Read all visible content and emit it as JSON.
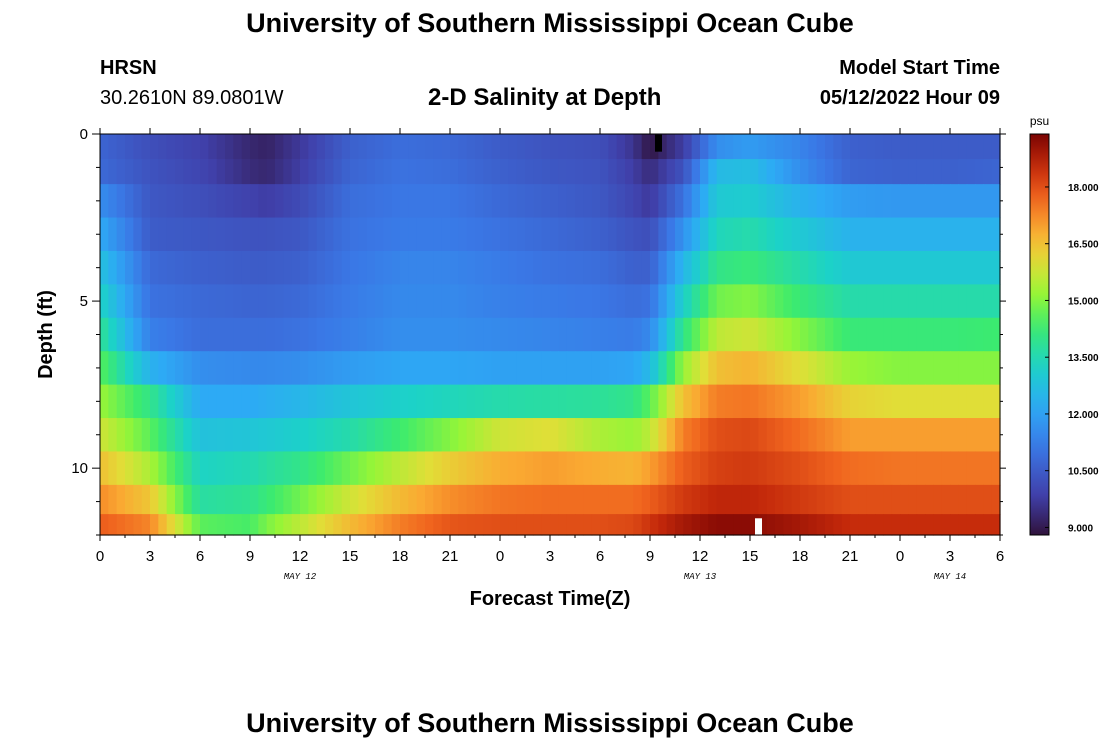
{
  "page": {
    "title": "University of Southern Mississippi Ocean Cube",
    "footer_title": "University of Southern Mississippi Ocean Cube",
    "station": "HRSN",
    "coords": "30.2610N  89.0801W",
    "plot_title": "2-D Salinity at Depth",
    "model_start_label": "Model Start Time",
    "model_start_value": "05/12/2022 Hour 09"
  },
  "chart_data": {
    "type": "heatmap",
    "title": "2-D Salinity at Depth",
    "xlabel": "Forecast Time(Z)",
    "ylabel": "Depth (ft)",
    "x_hours_range": [
      0,
      54
    ],
    "y_range": [
      0,
      12
    ],
    "y_inverted": true,
    "x_tick_labels": [
      "0",
      "3",
      "6",
      "9",
      "12",
      "15",
      "18",
      "21",
      "0",
      "3",
      "6",
      "9",
      "12",
      "15",
      "18",
      "21",
      "0",
      "3",
      "6"
    ],
    "y_tick_labels": [
      "0",
      "5",
      "10"
    ],
    "y_tick_values": [
      0,
      5,
      10
    ],
    "date_labels": [
      {
        "text": "MAY 12",
        "hour": 12
      },
      {
        "text": "MAY 13",
        "hour": 36
      },
      {
        "text": "MAY 14",
        "hour": 51
      }
    ],
    "colorbar": {
      "unit": "psu",
      "min": 8.8,
      "max": 19.4,
      "tick_labels": [
        "18.000",
        "16.500",
        "15.000",
        "13.500",
        "12.000",
        "10.500",
        "9.000"
      ],
      "tick_values": [
        18.0,
        16.5,
        15.0,
        13.5,
        12.0,
        10.5,
        9.0
      ]
    },
    "layer_depths_ft": [
      0.5,
      1.0,
      2.0,
      3.0,
      4.0,
      5.0,
      6.0,
      7.0,
      8.0,
      9.0,
      10.0,
      11.0,
      11.75
    ],
    "time_hours": [
      0,
      3,
      6,
      9,
      10,
      12,
      15,
      18,
      21,
      24,
      27,
      30,
      32,
      33,
      35,
      37,
      39,
      42,
      45,
      48,
      51,
      54
    ],
    "salinity": [
      [
        10.7,
        10.2,
        9.9,
        9.3,
        9.2,
        9.7,
        10.6,
        10.9,
        10.8,
        10.5,
        10.3,
        10.2,
        9.6,
        8.9,
        9.8,
        11.6,
        11.9,
        11.4,
        10.6,
        10.5,
        10.5,
        10.5
      ],
      [
        10.8,
        10.3,
        10.0,
        9.4,
        9.3,
        9.8,
        10.7,
        11.0,
        10.9,
        10.6,
        10.4,
        10.3,
        9.8,
        9.4,
        10.3,
        12.6,
        12.7,
        11.6,
        10.7,
        10.6,
        10.6,
        10.7
      ],
      [
        11.6,
        10.4,
        10.2,
        9.9,
        9.8,
        10.1,
        10.9,
        11.1,
        11.1,
        10.8,
        10.6,
        10.4,
        10.0,
        9.7,
        11.0,
        13.0,
        13.1,
        12.4,
        11.9,
        11.8,
        11.8,
        11.8
      ],
      [
        12.2,
        10.5,
        10.4,
        10.3,
        10.3,
        10.4,
        11.0,
        11.2,
        11.2,
        11.0,
        10.8,
        10.6,
        10.3,
        10.2,
        11.7,
        13.4,
        13.6,
        13.0,
        12.4,
        12.4,
        12.4,
        12.4
      ],
      [
        12.8,
        10.8,
        10.6,
        10.5,
        10.5,
        10.6,
        11.1,
        11.4,
        11.4,
        11.2,
        11.0,
        10.9,
        10.6,
        10.6,
        12.5,
        14.0,
        14.2,
        13.6,
        13.0,
        13.0,
        13.0,
        13.0
      ],
      [
        13.3,
        11.0,
        10.8,
        10.7,
        10.7,
        10.8,
        11.2,
        11.5,
        11.5,
        11.3,
        11.2,
        11.1,
        10.9,
        11.0,
        13.2,
        14.8,
        15.0,
        14.2,
        13.6,
        13.6,
        13.6,
        13.6
      ],
      [
        13.9,
        11.3,
        10.9,
        10.9,
        10.9,
        11.0,
        11.3,
        11.6,
        11.6,
        11.5,
        11.4,
        11.3,
        11.2,
        11.5,
        14.0,
        15.6,
        15.8,
        15.0,
        14.2,
        14.2,
        14.2,
        14.3
      ],
      [
        14.6,
        12.4,
        11.6,
        11.5,
        11.5,
        11.6,
        11.9,
        12.1,
        12.1,
        12.0,
        12.0,
        12.0,
        12.1,
        12.6,
        15.2,
        16.5,
        16.7,
        16.0,
        15.2,
        15.0,
        15.0,
        15.0
      ],
      [
        15.2,
        14.0,
        12.2,
        12.2,
        12.3,
        12.5,
        12.9,
        13.2,
        13.4,
        13.6,
        13.7,
        13.8,
        14.0,
        14.6,
        16.5,
        17.4,
        17.5,
        17.0,
        16.2,
        16.0,
        16.0,
        16.0
      ],
      [
        15.8,
        14.6,
        12.8,
        12.9,
        13.0,
        13.2,
        13.6,
        14.3,
        15.0,
        15.8,
        16.0,
        15.4,
        15.2,
        15.6,
        17.4,
        18.0,
        18.1,
        17.6,
        17.0,
        17.0,
        17.0,
        17.0
      ],
      [
        16.5,
        15.4,
        13.3,
        13.5,
        13.7,
        14.0,
        14.8,
        15.6,
        16.3,
        16.8,
        17.0,
        16.8,
        16.7,
        17.0,
        17.8,
        18.2,
        18.3,
        18.0,
        17.6,
        17.5,
        17.5,
        17.5
      ],
      [
        17.2,
        16.4,
        13.7,
        13.9,
        14.2,
        14.8,
        15.8,
        16.6,
        17.2,
        17.5,
        17.6,
        17.6,
        17.6,
        17.8,
        18.3,
        18.6,
        18.6,
        18.3,
        18.0,
        18.0,
        18.0,
        18.0
      ],
      [
        17.8,
        17.3,
        14.6,
        14.4,
        14.9,
        15.6,
        16.6,
        17.4,
        17.9,
        18.0,
        18.0,
        18.0,
        18.1,
        18.4,
        18.9,
        19.2,
        19.2,
        18.9,
        18.5,
        18.5,
        18.5,
        18.5
      ]
    ]
  }
}
